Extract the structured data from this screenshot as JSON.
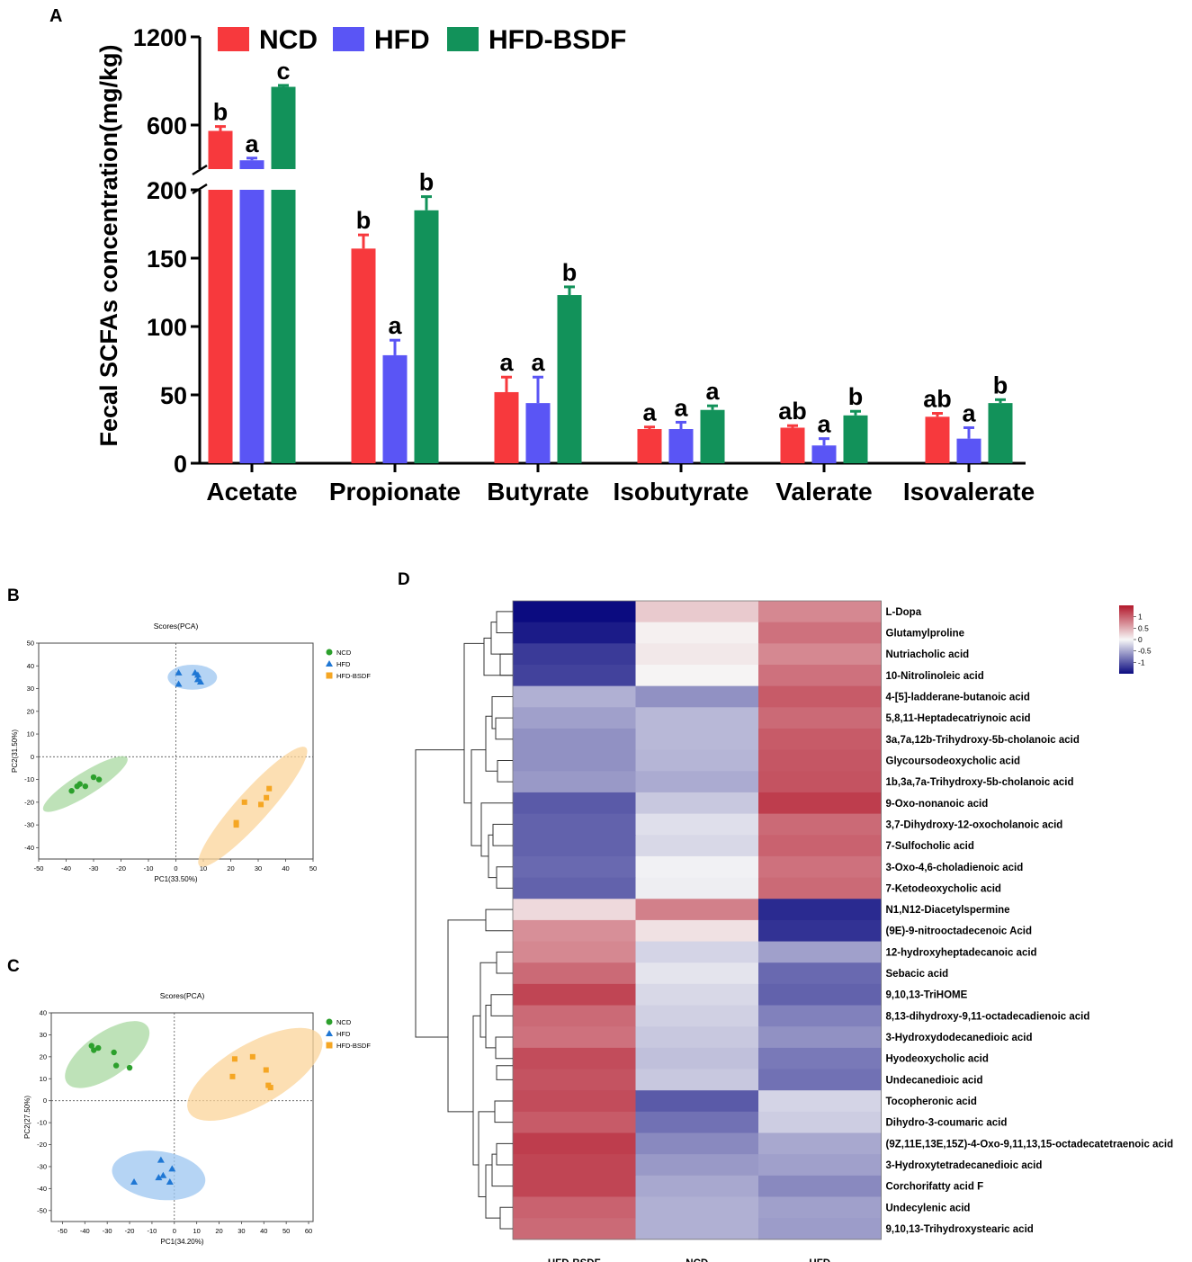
{
  "colors": {
    "ncd": "#f7393d",
    "hfd": "#5a55f5",
    "hfd_bsdf": "#12925a",
    "pca_ncd": "#2ca02c",
    "pca_hfd": "#1f77d4",
    "pca_hfd_bsdf": "#f5a623",
    "heat_high": "#b2182b",
    "heat_mid": "#f7f7f7",
    "heat_low": "#0b0b80"
  },
  "panel_labels": {
    "a": "A",
    "b": "B",
    "c": "C",
    "d": "D"
  },
  "chart_data": [
    {
      "id": "A",
      "type": "bar",
      "ylabel": "Fecal SCFAs concentration(mg/kg)",
      "y_ticks_lower": [
        "0",
        "50",
        "100",
        "150",
        "200"
      ],
      "y_ticks_upper": [
        "600",
        "1200"
      ],
      "y_break": [
        200,
        300
      ],
      "upper_range": [
        300,
        1200
      ],
      "lower_range": [
        0,
        200
      ],
      "legend": [
        "NCD",
        "HFD",
        "HFD-BSDF"
      ],
      "categories": [
        "Acetate",
        "Propionate",
        "Butyrate",
        "Isobutyrate",
        "Valerate",
        "Isovalerate"
      ],
      "series": [
        {
          "name": "NCD",
          "values": [
            560,
            157,
            52,
            25,
            26,
            34
          ],
          "errors": [
            30,
            10,
            11,
            1.5,
            1.5,
            2.5
          ],
          "letters": [
            "b",
            "b",
            "a",
            "a",
            "ab",
            "ab"
          ]
        },
        {
          "name": "HFD",
          "values": [
            360,
            79,
            44,
            25,
            13,
            18
          ],
          "errors": [
            15,
            11,
            19,
            5,
            5,
            8
          ],
          "letters": [
            "a",
            "a",
            "a",
            "a",
            "a",
            "a"
          ]
        },
        {
          "name": "HFD-BSDF",
          "values": [
            860,
            185,
            123,
            39,
            35,
            44
          ],
          "errors": [
            10,
            10,
            6,
            3,
            3,
            2.5
          ],
          "letters": [
            "c",
            "b",
            "b",
            "a",
            "b",
            "b"
          ]
        }
      ]
    },
    {
      "id": "B",
      "type": "scatter",
      "title": "Scores(PCA)",
      "xlabel": "PC1(33.50%)",
      "ylabel": "PC2(31.50%)",
      "xlim": [
        -50,
        50
      ],
      "ylim": [
        -45,
        50
      ],
      "x_ticks": [
        "-50",
        "-40",
        "-30",
        "-20",
        "-10",
        "0",
        "10",
        "20",
        "30",
        "40",
        "50"
      ],
      "y_ticks": [
        "-40",
        "-30",
        "-20",
        "-10",
        "0",
        "10",
        "20",
        "30",
        "40",
        "50"
      ],
      "legend": [
        "NCD",
        "HFD",
        "HFD-BSDF"
      ],
      "series": [
        {
          "name": "NCD",
          "marker": "circle",
          "points": [
            [
              -38,
              -15
            ],
            [
              -36,
              -13
            ],
            [
              -33,
              -13
            ],
            [
              -35,
              -12
            ],
            [
              -30,
              -9
            ],
            [
              -28,
              -10
            ]
          ],
          "ellipse": {
            "cx": -33,
            "cy": -12,
            "rx": 18,
            "ry": 5,
            "angle": 32
          }
        },
        {
          "name": "HFD",
          "marker": "triangle",
          "points": [
            [
              1,
              37
            ],
            [
              1,
              32
            ],
            [
              7,
              37
            ],
            [
              8,
              34
            ],
            [
              9,
              33
            ],
            [
              8,
              36
            ]
          ],
          "ellipse": {
            "cx": 6,
            "cy": 35,
            "rx": 9,
            "ry": 5.5,
            "angle": 0
          }
        },
        {
          "name": "HFD-BSDF",
          "marker": "square",
          "points": [
            [
              22,
              -29
            ],
            [
              22,
              -30
            ],
            [
              25,
              -20
            ],
            [
              31,
              -21
            ],
            [
              33,
              -18
            ],
            [
              34,
              -14
            ]
          ],
          "ellipse": {
            "cx": 28,
            "cy": -22,
            "rx": 29,
            "ry": 7,
            "angle": 48
          }
        }
      ]
    },
    {
      "id": "C",
      "type": "scatter",
      "title": "Scores(PCA)",
      "xlabel": "PC1(34.20%)",
      "ylabel": "PC2(27.50%)",
      "xlim": [
        -55,
        62
      ],
      "ylim": [
        -55,
        40
      ],
      "x_ticks": [
        "-50",
        "-40",
        "-30",
        "-20",
        "-10",
        "0",
        "10",
        "20",
        "30",
        "40",
        "50",
        "60"
      ],
      "y_ticks": [
        "-50",
        "-40",
        "-30",
        "-20",
        "-10",
        "0",
        "10",
        "20",
        "30",
        "40"
      ],
      "legend": [
        "NCD",
        "HFD",
        "HFD-BSDF"
      ],
      "series": [
        {
          "name": "NCD",
          "marker": "circle",
          "points": [
            [
              -37,
              25
            ],
            [
              -36,
              23
            ],
            [
              -34,
              24
            ],
            [
              -27,
              22
            ],
            [
              -26,
              16
            ],
            [
              -20,
              15
            ]
          ],
          "ellipse": {
            "cx": -30,
            "cy": 21,
            "rx": 22,
            "ry": 10,
            "angle": 35
          }
        },
        {
          "name": "HFD",
          "marker": "triangle",
          "points": [
            [
              -18,
              -37
            ],
            [
              -6,
              -27
            ],
            [
              -5,
              -34
            ],
            [
              -1,
              -31
            ],
            [
              -2,
              -37
            ],
            [
              -7,
              -35
            ]
          ],
          "ellipse": {
            "cx": -7,
            "cy": -34,
            "rx": 21,
            "ry": 11,
            "angle": -8
          }
        },
        {
          "name": "HFD-BSDF",
          "marker": "square",
          "points": [
            [
              26,
              11
            ],
            [
              27,
              19
            ],
            [
              35,
              20
            ],
            [
              41,
              14
            ],
            [
              42,
              7
            ],
            [
              43,
              6
            ]
          ],
          "ellipse": {
            "cx": 36,
            "cy": 12,
            "rx": 34,
            "ry": 14,
            "angle": 30
          }
        }
      ]
    },
    {
      "id": "D",
      "type": "heatmap",
      "columns": [
        "HFD-BSDF",
        "NCD",
        "HFD"
      ],
      "colorbar_ticks": [
        "1",
        "0.5",
        "0",
        "-0.5",
        "-1"
      ],
      "rows": [
        {
          "name": "L-Dopa",
          "values": [
            -1.5,
            0.3,
            0.75
          ]
        },
        {
          "name": "Glutamylproline",
          "values": [
            -1.4,
            0.05,
            0.9
          ]
        },
        {
          "name": "Nutriacholic acid",
          "values": [
            -1.2,
            0.1,
            0.75
          ]
        },
        {
          "name": "10-Nitrolinoleic acid",
          "values": [
            -1.15,
            0.02,
            0.9
          ]
        },
        {
          "name": "4-[5]-ladderane-butanoic acid",
          "values": [
            -0.45,
            -0.65,
            1.05
          ]
        },
        {
          "name": "5,8,11-Heptadecatriynoic acid",
          "values": [
            -0.55,
            -0.4,
            0.95
          ]
        },
        {
          "name": "3a,7a,12b-Trihydroxy-5b-cholanoic acid",
          "values": [
            -0.65,
            -0.4,
            1.05
          ]
        },
        {
          "name": "Glycoursodeoxycholic acid",
          "values": [
            -0.65,
            -0.42,
            1.08
          ]
        },
        {
          "name": "1b,3a,7a-Trihydroxy-5b-cholanoic acid",
          "values": [
            -0.6,
            -0.48,
            1.1
          ]
        },
        {
          "name": "9-Oxo-nonanoic acid",
          "values": [
            -1.0,
            -0.3,
            1.25
          ]
        },
        {
          "name": "3,7-Dihydroxy-12-oxocholanoic acid",
          "values": [
            -0.95,
            -0.15,
            0.95
          ]
        },
        {
          "name": "7-Sulfocholic acid",
          "values": [
            -0.95,
            -0.2,
            1.0
          ]
        },
        {
          "name": "3-Oxo-4,6-choladienoic acid",
          "values": [
            -0.9,
            -0.04,
            0.9
          ]
        },
        {
          "name": "7-Ketodeoxycholic acid",
          "values": [
            -0.95,
            -0.06,
            0.95
          ]
        },
        {
          "name": "N1,N12-Diacetylspermine",
          "values": [
            0.2,
            0.8,
            -1.3
          ]
        },
        {
          "name": "(9E)-9-nitrooctadecenoic Acid",
          "values": [
            0.7,
            0.15,
            -1.25
          ]
        },
        {
          "name": "12-hydroxyheptadecanoic acid",
          "values": [
            0.75,
            -0.22,
            -0.55
          ]
        },
        {
          "name": "Sebacic acid",
          "values": [
            0.95,
            -0.12,
            -0.9
          ]
        },
        {
          "name": "9,10,13-TriHOME",
          "values": [
            1.2,
            -0.2,
            -0.95
          ]
        },
        {
          "name": "8,13-dihydroxy-9,11-octadecadienoic acid",
          "values": [
            0.95,
            -0.25,
            -0.75
          ]
        },
        {
          "name": "3-Hydroxydodecanedioic acid",
          "values": [
            0.9,
            -0.3,
            -0.65
          ]
        },
        {
          "name": "Hyodeoxycholic acid",
          "values": [
            1.15,
            -0.35,
            -0.8
          ]
        },
        {
          "name": "Undecanedioic acid",
          "values": [
            1.1,
            -0.3,
            -0.85
          ]
        },
        {
          "name": "Tocopheronic acid",
          "values": [
            1.15,
            -1.0,
            -0.22
          ]
        },
        {
          "name": "Dihydro-3-coumaric acid",
          "values": [
            1.05,
            -0.85,
            -0.27
          ]
        },
        {
          "name": "(9Z,11E,13E,15Z)-4-Oxo-9,11,13,15-octadecatetraenoic acid",
          "values": [
            1.25,
            -0.7,
            -0.5
          ]
        },
        {
          "name": "3-Hydroxytetradecanedioic acid",
          "values": [
            1.2,
            -0.6,
            -0.55
          ]
        },
        {
          "name": "Corchorifatty acid F",
          "values": [
            1.2,
            -0.5,
            -0.7
          ]
        },
        {
          "name": "Undecylenic acid",
          "values": [
            1.0,
            -0.45,
            -0.55
          ]
        },
        {
          "name": "9,10,13-Trihydroxystearic acid",
          "values": [
            0.95,
            -0.45,
            -0.58
          ]
        }
      ]
    }
  ]
}
